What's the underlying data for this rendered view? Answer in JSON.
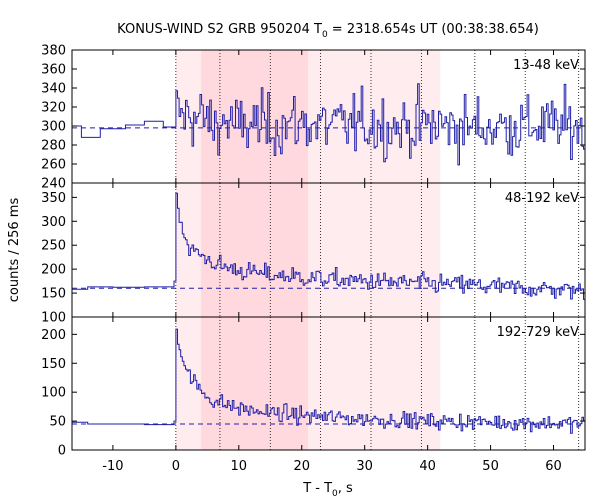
{
  "chart_data": {
    "type": "line",
    "title": {
      "pre": "KONUS-WIND S2 GRB 950204 T",
      "sub": "0",
      "post": " = 2318.654s UT (00:38:38.654)"
    },
    "xlabel": {
      "pre": "T - T",
      "sub": "0",
      "post": ", s"
    },
    "ylabel": "counts / 256 ms",
    "xlim": [
      -16.5,
      65
    ],
    "xticks": [
      -10,
      0,
      10,
      20,
      30,
      40,
      50,
      60
    ],
    "vlines": [
      0,
      7,
      15,
      23,
      31,
      39,
      47.5,
      55.5,
      64
    ],
    "shaded": [
      {
        "x": [
          0,
          4
        ],
        "level": "light"
      },
      {
        "x": [
          4,
          21
        ],
        "level": "dark"
      },
      {
        "x": [
          21,
          42
        ],
        "level": "light"
      }
    ],
    "colors": {
      "line": "#1f1fa8",
      "shade_dark": "#ffd9dd",
      "shade_light": "#ffecee"
    },
    "panels": [
      {
        "name": "13-48 keV",
        "ylim": [
          240,
          380
        ],
        "yticks": [
          240,
          260,
          280,
          300,
          320,
          340,
          360,
          380
        ],
        "background": 298,
        "pre_burst": [
          [
            -16.5,
            300
          ],
          [
            -15,
            288
          ],
          [
            -12,
            297
          ],
          [
            -8,
            301
          ],
          [
            -5,
            305
          ],
          [
            -2,
            299
          ],
          [
            0,
            301
          ]
        ],
        "burst": [
          [
            0,
            320
          ],
          [
            1,
            308
          ],
          [
            2,
            315
          ],
          [
            3,
            306
          ],
          [
            4,
            310
          ],
          [
            6,
            300
          ],
          [
            8,
            305
          ],
          [
            10,
            298
          ],
          [
            12,
            303
          ],
          [
            15,
            300
          ],
          [
            20,
            303
          ],
          [
            25,
            300
          ],
          [
            30,
            302
          ],
          [
            35,
            299
          ],
          [
            40,
            301
          ],
          [
            45,
            300
          ],
          [
            50,
            299
          ],
          [
            55,
            300
          ],
          [
            60,
            300
          ],
          [
            65,
            299
          ]
        ],
        "noise_sd": 16
      },
      {
        "name": "48-192 keV",
        "ylim": [
          100,
          380
        ],
        "yticks": [
          100,
          150,
          200,
          250,
          300,
          350
        ],
        "background": 160,
        "pre_burst": [
          [
            -16.5,
            158
          ],
          [
            -14,
            163
          ],
          [
            -10,
            162
          ],
          [
            -5,
            163
          ],
          [
            -1,
            163
          ],
          [
            -0.3,
            175
          ],
          [
            0,
            175
          ]
        ],
        "burst": [
          [
            0,
            345
          ],
          [
            0.6,
            310
          ],
          [
            1.2,
            270
          ],
          [
            2,
            245
          ],
          [
            3,
            235
          ],
          [
            4,
            228
          ],
          [
            5,
            220
          ],
          [
            6,
            212
          ],
          [
            8,
            203
          ],
          [
            10,
            198
          ],
          [
            12,
            193
          ],
          [
            15,
            188
          ],
          [
            20,
            183
          ],
          [
            25,
            178
          ],
          [
            30,
            175
          ],
          [
            35,
            172
          ],
          [
            40,
            170
          ],
          [
            45,
            168
          ],
          [
            50,
            164
          ],
          [
            55,
            160
          ],
          [
            60,
            158
          ],
          [
            65,
            155
          ]
        ],
        "noise_sd": 10
      },
      {
        "name": "192-729 keV",
        "ylim": [
          0,
          230
        ],
        "yticks": [
          0,
          50,
          100,
          150,
          200
        ],
        "background": 45,
        "pre_burst": [
          [
            -16.5,
            48
          ],
          [
            -14,
            45
          ],
          [
            -10,
            45
          ],
          [
            -5,
            44
          ],
          [
            -1,
            44
          ],
          [
            -0.3,
            50
          ],
          [
            0,
            50
          ]
        ],
        "burst": [
          [
            0,
            205
          ],
          [
            0.6,
            175
          ],
          [
            1.2,
            150
          ],
          [
            2,
            130
          ],
          [
            3,
            115
          ],
          [
            4,
            100
          ],
          [
            5,
            92
          ],
          [
            6,
            85
          ],
          [
            8,
            78
          ],
          [
            10,
            72
          ],
          [
            12,
            68
          ],
          [
            15,
            64
          ],
          [
            20,
            60
          ],
          [
            25,
            56
          ],
          [
            30,
            54
          ],
          [
            35,
            52
          ],
          [
            40,
            50
          ],
          [
            45,
            49
          ],
          [
            50,
            48
          ],
          [
            55,
            47
          ],
          [
            60,
            46
          ],
          [
            65,
            45
          ]
        ],
        "noise_sd": 7
      }
    ]
  }
}
